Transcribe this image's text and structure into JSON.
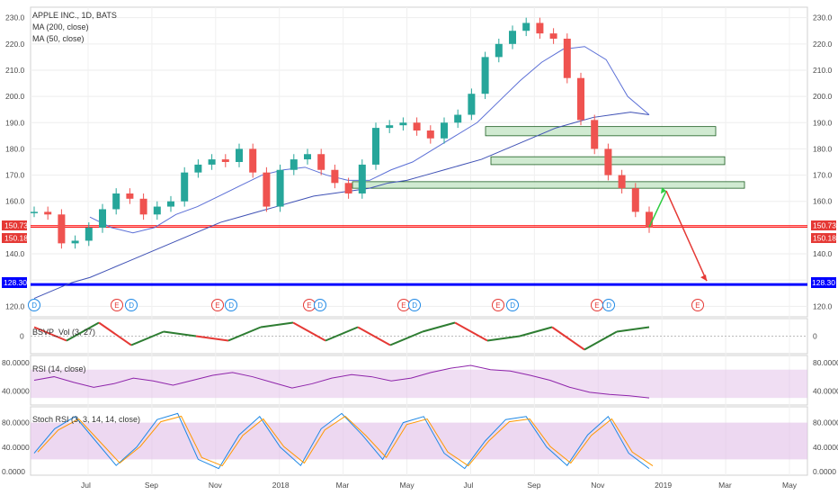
{
  "legend": {
    "symbol": "APPLE INC., 1D, BATS",
    "ma200": "MA (200, close)",
    "ma50": "MA (50, close)"
  },
  "indicators": {
    "vol": "BSVP_Vol (3, 27)",
    "rsi": "RSI (14, close)",
    "stoch": "Stoch RSI (3, 3, 14, 14, close)"
  },
  "price_badges": {
    "upper": "150.73",
    "lower": "150.18",
    "support": "128.30"
  },
  "events": {
    "dividend": "D",
    "earnings": "E"
  },
  "colors": {
    "up": "#26a69a",
    "down": "#ef5350",
    "ma200": "#3f51b5",
    "ma50": "#5b6fd6",
    "support": "#0000ff",
    "resistance_line": "#ff0000",
    "zone_fill": "#c8e6c9",
    "zone_stroke": "#1b5e20",
    "stoch_band": "#e1bee7",
    "rsi_line": "#8e24aa"
  },
  "chart_data": [
    {
      "type": "line",
      "title": "APPLE INC., 1D, BATS",
      "x_ticks": [
        "Jul",
        "Sep",
        "Nov",
        "2018",
        "Mar",
        "May",
        "Jul",
        "Sep",
        "Nov",
        "2019",
        "Mar",
        "May"
      ],
      "y_ticks": [
        120,
        130,
        140,
        150,
        160,
        170,
        180,
        190,
        200,
        210,
        220,
        230
      ],
      "ylim": [
        116,
        234
      ],
      "log_scale": false,
      "grid": true,
      "series": [
        {
          "name": "price (close approx.)",
          "values": [
            156,
            155,
            144,
            145,
            150,
            157,
            163,
            161,
            155,
            158,
            160,
            171,
            174,
            176,
            175,
            180,
            171,
            158,
            172,
            176,
            178,
            172,
            167,
            163,
            174,
            188,
            189,
            190,
            187,
            184,
            190,
            193,
            201,
            215,
            220,
            225,
            228,
            224,
            222,
            207,
            191,
            180,
            170,
            165,
            156,
            150
          ]
        },
        {
          "name": "MA (200, close)",
          "values": [
            123,
            126,
            129,
            131,
            134,
            137,
            140,
            143,
            146,
            149,
            152,
            154,
            156,
            158,
            160,
            162,
            163,
            164,
            165,
            167,
            168,
            170,
            172,
            174,
            176,
            179,
            182,
            185,
            188,
            190,
            192,
            193,
            194,
            193
          ]
        },
        {
          "name": "MA (50, close)",
          "values": [
            154,
            150,
            148,
            150,
            155,
            158,
            162,
            166,
            170,
            172,
            173,
            170,
            168,
            168,
            172,
            175,
            180,
            185,
            190,
            198,
            206,
            213,
            218,
            219,
            214,
            200,
            193
          ]
        }
      ],
      "horizontal_lines": [
        150.73,
        150.18,
        128.3
      ],
      "zones": [
        {
          "low": 185,
          "high": 188.5
        },
        {
          "low": 174,
          "high": 177
        },
        {
          "low": 165,
          "high": 167.5
        }
      ],
      "projection": {
        "start": 150.18,
        "peak": 164,
        "target": 128.3
      }
    },
    {
      "type": "line",
      "title": "BSVP_Vol (3, 27)",
      "y_ticks": [
        0
      ],
      "values": [
        2,
        -1,
        3,
        -2,
        1,
        0,
        -1,
        2,
        3,
        -1,
        2,
        -2,
        1,
        3,
        -1,
        0,
        2,
        -3,
        1,
        2
      ]
    },
    {
      "type": "line",
      "title": "RSI (14, close)",
      "y_ticks": [
        "80.0000",
        "40.0000"
      ],
      "ylim": [
        20,
        90
      ],
      "bands": [
        30,
        70
      ],
      "values": [
        55,
        60,
        52,
        45,
        50,
        58,
        54,
        48,
        55,
        62,
        66,
        60,
        52,
        44,
        50,
        58,
        63,
        60,
        54,
        58,
        66,
        72,
        76,
        70,
        68,
        62,
        55,
        45,
        38,
        35,
        33,
        30
      ]
    },
    {
      "type": "line",
      "title": "Stoch RSI (3, 3, 14, 14, close)",
      "y_ticks": [
        "80.0000",
        "40.0000",
        "0.0000"
      ],
      "ylim": [
        0,
        100
      ],
      "bands": [
        20,
        80
      ],
      "values": [
        30,
        70,
        90,
        50,
        10,
        40,
        85,
        95,
        20,
        5,
        60,
        90,
        40,
        10,
        70,
        95,
        60,
        20,
        80,
        90,
        30,
        5,
        50,
        85,
        90,
        40,
        10,
        60,
        90,
        30,
        5
      ]
    }
  ]
}
